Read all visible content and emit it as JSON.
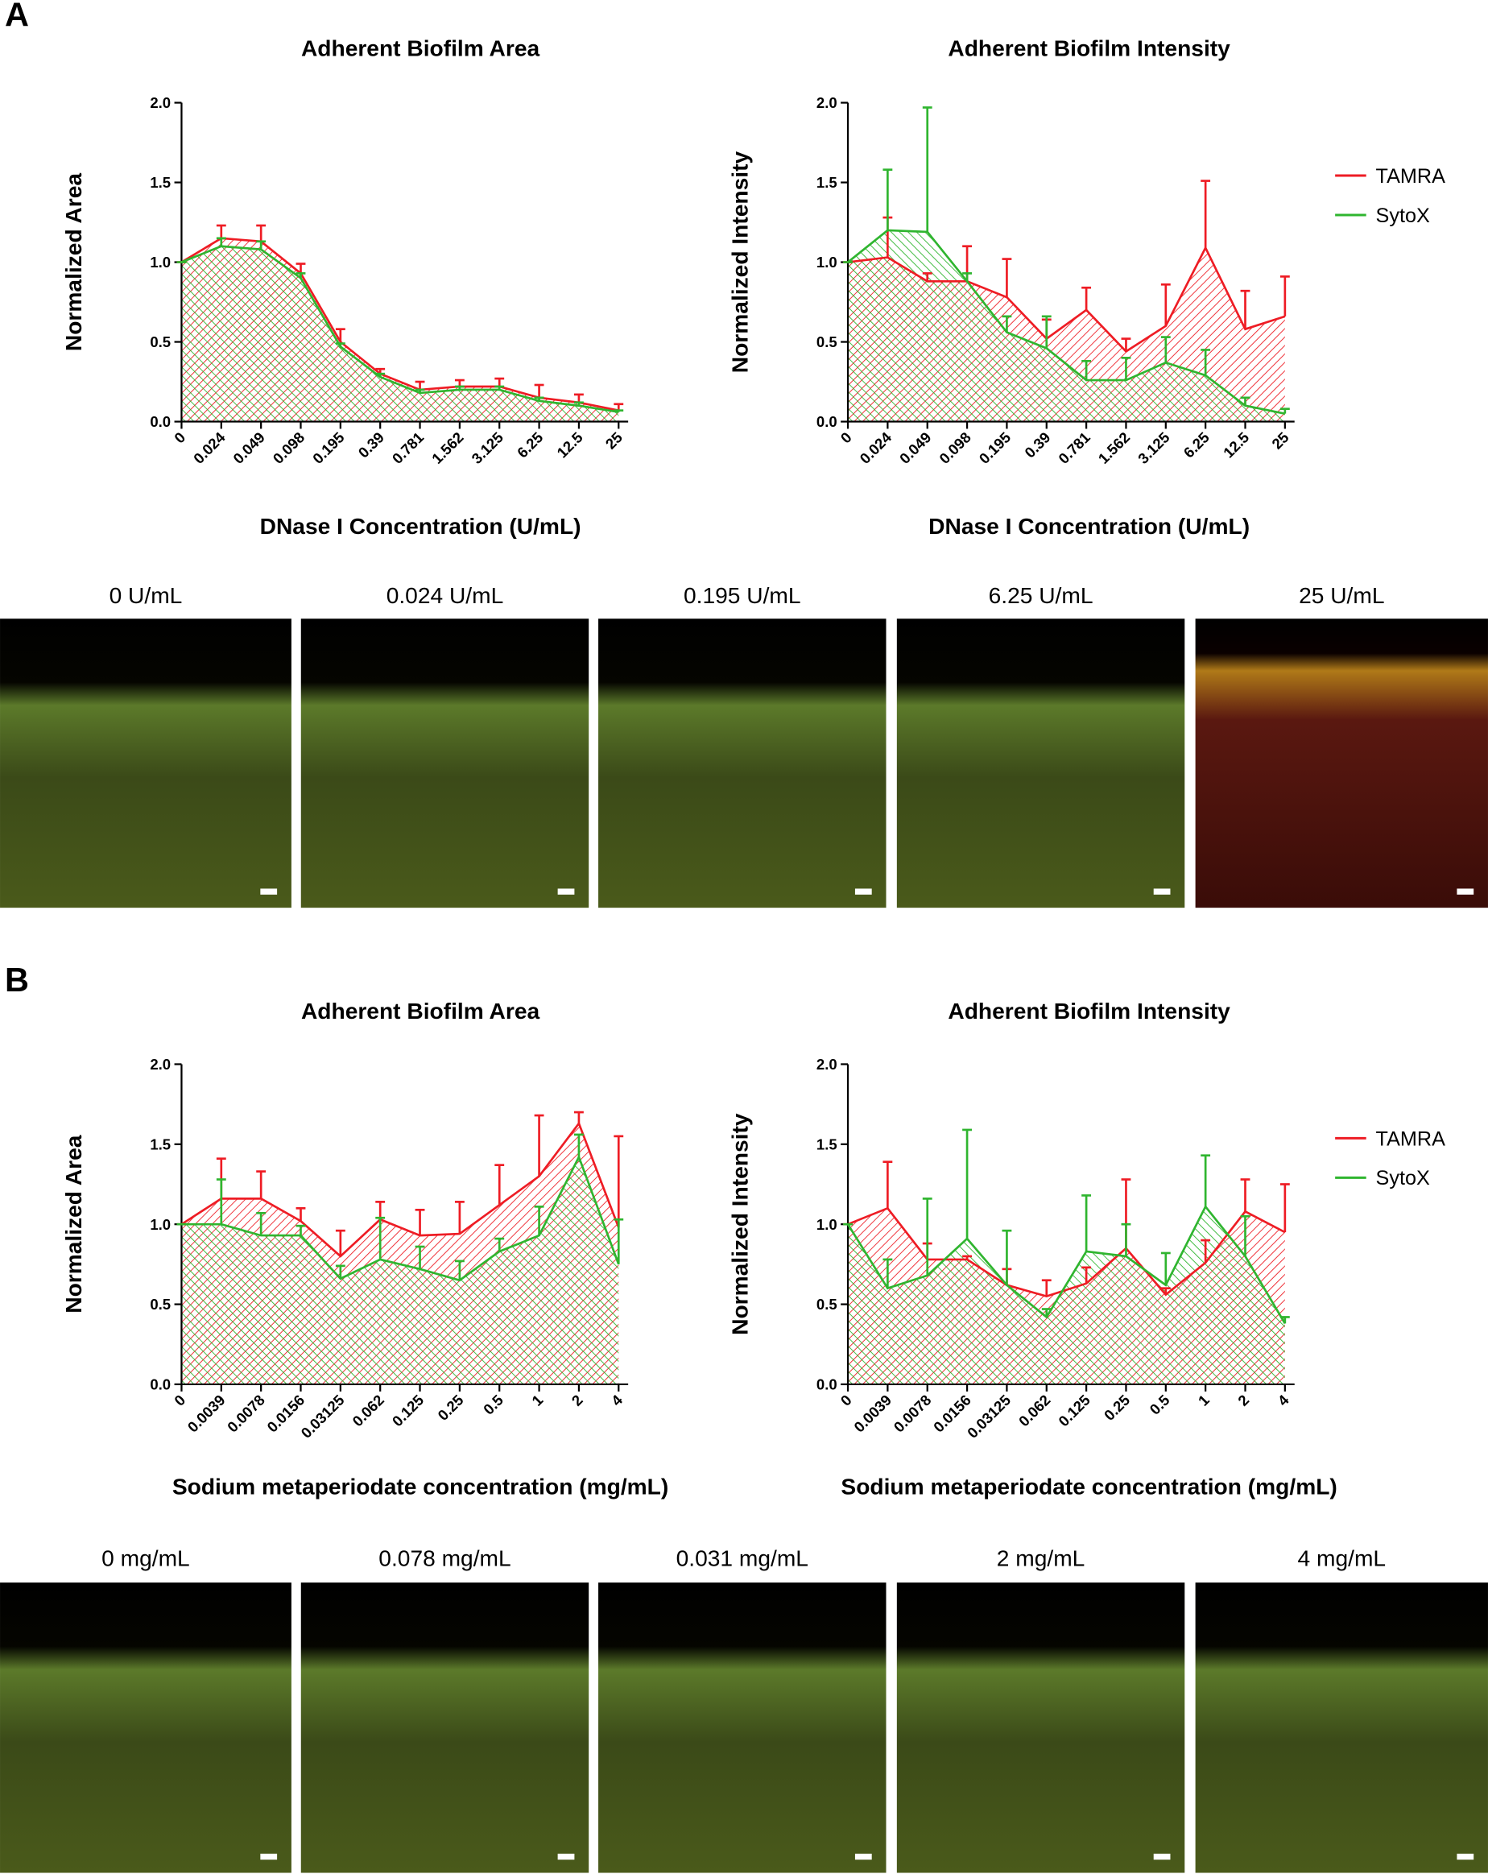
{
  "panel_labels": [
    "A",
    "B"
  ],
  "image_captions": [
    [
      "0 U/mL",
      "0.024 U/mL",
      "0.195 U/mL",
      "6.25 U/mL",
      "25 U/mL"
    ],
    [
      "0 mg/mL",
      "0.078 mg/mL",
      "0.031 mg/mL",
      "2 mg/mL",
      "4 mg/mL"
    ]
  ],
  "chart_data": [
    {
      "type": "line",
      "title": "Adherent Biofilm Area",
      "y_label": "Normalized Area",
      "x_label": "DNase I Concentration (U/mL)",
      "categories": [
        "0",
        "0.024",
        "0.049",
        "0.098",
        "0.195",
        "0.39",
        "0.781",
        "1.562",
        "3.125",
        "6.25",
        "12.5",
        "25"
      ],
      "ylim": [
        0,
        2
      ],
      "yticks": [
        {
          "value": 0,
          "label": "0.0"
        },
        {
          "value": 0.5,
          "label": "0.5"
        },
        {
          "value": 1,
          "label": "1.0"
        },
        {
          "value": 1.5,
          "label": "1.5"
        },
        {
          "value": 2,
          "label": "2.0"
        }
      ],
      "series": [
        {
          "color": "#ee1c24",
          "values": [
            1.0,
            1.15,
            1.13,
            0.93,
            0.5,
            0.3,
            0.2,
            0.22,
            0.22,
            0.15,
            0.12,
            0.07
          ],
          "errors": [
            0,
            0.08,
            0.1,
            0.06,
            0.08,
            0.03,
            0.05,
            0.04,
            0.05,
            0.08,
            0.05,
            0.04
          ]
        },
        {
          "color": "#2fb52f",
          "values": [
            1.0,
            1.1,
            1.08,
            0.9,
            0.47,
            0.28,
            0.18,
            0.2,
            0.2,
            0.13,
            0.1,
            0.06
          ],
          "errors": [
            0,
            0.05,
            0.05,
            0.03,
            0.02,
            0.02,
            0.02,
            0.02,
            0.02,
            0.02,
            0.02,
            0.01
          ]
        }
      ]
    },
    {
      "type": "line",
      "title": "Adherent Biofilm Intensity",
      "y_label": "Normalized Intensity",
      "x_label": "DNase I Concentration (U/mL)",
      "categories": [
        "0",
        "0.024",
        "0.049",
        "0.098",
        "0.195",
        "0.39",
        "0.781",
        "1.562",
        "3.125",
        "6.25",
        "12.5",
        "25"
      ],
      "ylim": [
        0,
        2
      ],
      "yticks": [
        {
          "value": 0,
          "label": "0.0"
        },
        {
          "value": 0.5,
          "label": "0.5"
        },
        {
          "value": 1,
          "label": "1.0"
        },
        {
          "value": 1.5,
          "label": "1.5"
        },
        {
          "value": 2,
          "label": "2.0"
        }
      ],
      "legend": "right",
      "series": [
        {
          "name": "TAMRA",
          "color": "#ee1c24",
          "values": [
            1.0,
            1.03,
            0.88,
            0.88,
            0.78,
            0.52,
            0.7,
            0.44,
            0.6,
            1.09,
            0.58,
            0.66
          ],
          "errors": [
            0,
            0.25,
            0.05,
            0.22,
            0.24,
            0.12,
            0.14,
            0.08,
            0.26,
            0.42,
            0.24,
            0.25
          ]
        },
        {
          "name": "SytoX",
          "color": "#2fb52f",
          "values": [
            1.0,
            1.2,
            1.19,
            0.88,
            0.56,
            0.46,
            0.26,
            0.26,
            0.37,
            0.29,
            0.1,
            0.05
          ],
          "errors": [
            0,
            0.38,
            0.78,
            0.05,
            0.1,
            0.2,
            0.12,
            0.14,
            0.16,
            0.16,
            0.05,
            0.03
          ]
        }
      ]
    },
    {
      "type": "line",
      "title": "Adherent Biofilm Area",
      "y_label": "Normalized Area",
      "x_label": "Sodium metaperiodate concentration (mg/mL)",
      "categories": [
        "0",
        "0.0039",
        "0.0078",
        "0.0156",
        "0.03125",
        "0.062",
        "0.125",
        "0.25",
        "0.5",
        "1",
        "2",
        "4"
      ],
      "ylim": [
        0,
        2
      ],
      "yticks": [
        {
          "value": 0,
          "label": "0.0"
        },
        {
          "value": 0.5,
          "label": "0.5"
        },
        {
          "value": 1,
          "label": "1.0"
        },
        {
          "value": 1.5,
          "label": "1.5"
        },
        {
          "value": 2,
          "label": "2.0"
        }
      ],
      "series": [
        {
          "color": "#ee1c24",
          "values": [
            1.0,
            1.16,
            1.16,
            1.02,
            0.8,
            1.03,
            0.93,
            0.94,
            1.12,
            1.3,
            1.63,
            0.98
          ],
          "errors": [
            0,
            0.25,
            0.17,
            0.08,
            0.16,
            0.11,
            0.16,
            0.2,
            0.25,
            0.38,
            0.07,
            0.57
          ]
        },
        {
          "color": "#2fb52f",
          "values": [
            1.0,
            1.0,
            0.93,
            0.93,
            0.66,
            0.78,
            0.72,
            0.65,
            0.83,
            0.93,
            1.42,
            0.75
          ],
          "errors": [
            0,
            0.28,
            0.14,
            0.06,
            0.08,
            0.26,
            0.14,
            0.12,
            0.08,
            0.18,
            0.14,
            0.28
          ]
        }
      ]
    },
    {
      "type": "line",
      "title": "Adherent Biofilm Intensity",
      "y_label": "Normalized Intensity",
      "x_label": "Sodium metaperiodate concentration (mg/mL)",
      "categories": [
        "0",
        "0.0039",
        "0.0078",
        "0.0156",
        "0.03125",
        "0.062",
        "0.125",
        "0.25",
        "0.5",
        "1",
        "2",
        "4"
      ],
      "ylim": [
        0,
        2
      ],
      "yticks": [
        {
          "value": 0,
          "label": "0.0"
        },
        {
          "value": 0.5,
          "label": "0.5"
        },
        {
          "value": 1,
          "label": "1.0"
        },
        {
          "value": 1.5,
          "label": "1.5"
        },
        {
          "value": 2,
          "label": "2.0"
        }
      ],
      "legend": "right",
      "series": [
        {
          "name": "TAMRA",
          "color": "#ee1c24",
          "values": [
            1.0,
            1.1,
            0.78,
            0.78,
            0.62,
            0.55,
            0.63,
            0.85,
            0.56,
            0.76,
            1.08,
            0.95
          ],
          "errors": [
            0,
            0.29,
            0.1,
            0.02,
            0.1,
            0.1,
            0.1,
            0.43,
            0.04,
            0.14,
            0.2,
            0.3
          ]
        },
        {
          "name": "SytoX",
          "color": "#2fb52f",
          "values": [
            1.0,
            0.6,
            0.68,
            0.91,
            0.62,
            0.42,
            0.83,
            0.8,
            0.62,
            1.11,
            0.8,
            0.38
          ],
          "errors": [
            0,
            0.18,
            0.48,
            0.68,
            0.34,
            0.05,
            0.35,
            0.2,
            0.2,
            0.32,
            0.25,
            0.04
          ]
        }
      ]
    }
  ]
}
